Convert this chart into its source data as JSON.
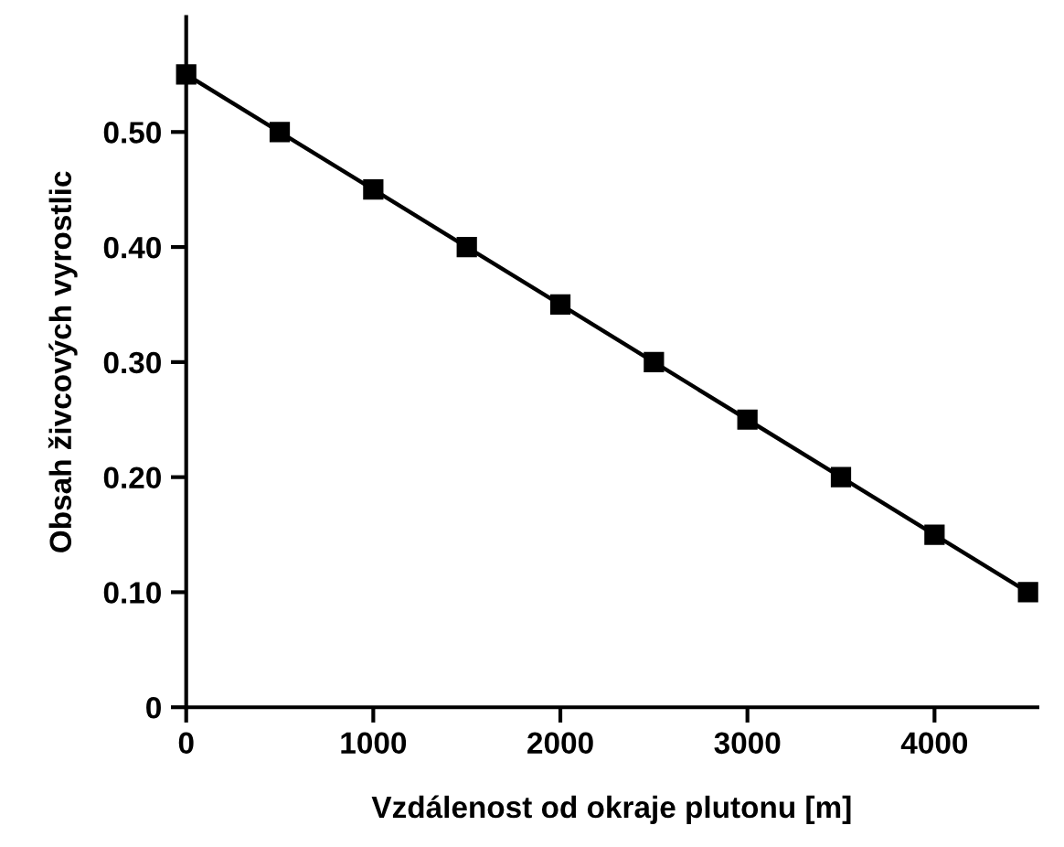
{
  "chart_data": {
    "type": "line",
    "xlabel": "Vzdálenost od okraje plutonu [m]",
    "ylabel": "Obsah živcových vyrostlic",
    "x": [
      0,
      500,
      1000,
      1500,
      2000,
      2500,
      3000,
      3500,
      4000,
      4500
    ],
    "series": [
      {
        "color": "#000000",
        "values": [
          0.55,
          0.5,
          0.45,
          0.4,
          0.35,
          0.3,
          0.25,
          0.2,
          0.15,
          0.1
        ]
      }
    ],
    "marker": "square",
    "line_style": "solid",
    "grid": false,
    "legend": false,
    "xlim": [
      0,
      4550
    ],
    "xticks": [
      0,
      1000,
      2000,
      3000,
      4000
    ],
    "ylim": [
      0,
      0.6
    ],
    "yticks": [
      0,
      {
        "value": 0.1,
        "label": "0.10"
      },
      {
        "value": 0.2,
        "label": "0.20"
      },
      {
        "value": 0.3,
        "label": "0.30"
      },
      {
        "value": 0.4,
        "label": "0.40"
      },
      {
        "value": 0.5,
        "label": "0.50"
      }
    ]
  }
}
